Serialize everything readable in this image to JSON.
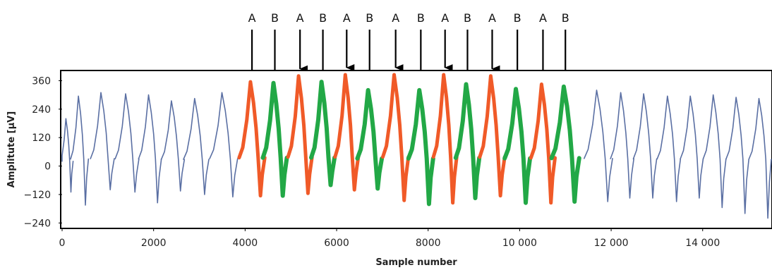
{
  "chart_data": {
    "type": "line",
    "xlabel": "Sample number",
    "ylabel": "Amplitute [µV]",
    "xlim": [
      0,
      15500
    ],
    "ylim": [
      -260,
      400
    ],
    "x_ticks": [
      0,
      2000,
      4000,
      6000,
      8000,
      10000,
      12000,
      14000
    ],
    "x_tick_labels": [
      "0",
      "2000",
      "4000",
      "6000",
      "8000",
      "10 000",
      "12 000",
      "14 000"
    ],
    "y_ticks": [
      360,
      240,
      120,
      0,
      -120,
      -240
    ],
    "y_tick_labels": [
      "360",
      "240",
      "120",
      "0",
      "−120",
      "−240"
    ],
    "grid": false,
    "colors": {
      "baseline": "#5a6fa3",
      "A": "#f05a28",
      "B": "#22a846"
    },
    "beats": [
      {
        "center": 100,
        "peak": 200,
        "trough": -110,
        "class": "baseline"
      },
      {
        "center": 380,
        "peak": 295,
        "trough": -165,
        "class": "baseline"
      },
      {
        "center": 880,
        "peak": 310,
        "trough": -100,
        "class": "baseline"
      },
      {
        "center": 1420,
        "peak": 305,
        "trough": -110,
        "class": "baseline"
      },
      {
        "center": 1920,
        "peak": 300,
        "trough": -155,
        "class": "baseline"
      },
      {
        "center": 2420,
        "peak": 275,
        "trough": -105,
        "class": "baseline"
      },
      {
        "center": 2930,
        "peak": 285,
        "trough": -120,
        "class": "baseline"
      },
      {
        "center": 3530,
        "peak": 310,
        "trough": -130,
        "class": "baseline"
      },
      {
        "center": 4150,
        "peak": 355,
        "trough": -125,
        "class": "A"
      },
      {
        "center": 4650,
        "peak": 350,
        "trough": -125,
        "class": "B"
      },
      {
        "center": 5200,
        "peak": 380,
        "trough": -115,
        "class": "A"
      },
      {
        "center": 5700,
        "peak": 355,
        "trough": -80,
        "class": "B"
      },
      {
        "center": 6220,
        "peak": 385,
        "trough": -100,
        "class": "A"
      },
      {
        "center": 6720,
        "peak": 320,
        "trough": -95,
        "class": "B"
      },
      {
        "center": 7290,
        "peak": 385,
        "trough": -145,
        "class": "A"
      },
      {
        "center": 7840,
        "peak": 320,
        "trough": -160,
        "class": "B"
      },
      {
        "center": 8370,
        "peak": 385,
        "trough": -155,
        "class": "A"
      },
      {
        "center": 8860,
        "peak": 345,
        "trough": -135,
        "class": "B"
      },
      {
        "center": 9400,
        "peak": 380,
        "trough": -125,
        "class": "A"
      },
      {
        "center": 9950,
        "peak": 325,
        "trough": -155,
        "class": "B"
      },
      {
        "center": 10510,
        "peak": 345,
        "trough": -155,
        "class": "A"
      },
      {
        "center": 11000,
        "peak": 335,
        "trough": -150,
        "class": "B"
      },
      {
        "center": 11720,
        "peak": 320,
        "trough": -150,
        "class": "baseline"
      },
      {
        "center": 12240,
        "peak": 310,
        "trough": -135,
        "class": "baseline"
      },
      {
        "center": 12740,
        "peak": 305,
        "trough": -135,
        "class": "baseline"
      },
      {
        "center": 13260,
        "peak": 295,
        "trough": -150,
        "class": "baseline"
      },
      {
        "center": 13760,
        "peak": 295,
        "trough": -135,
        "class": "baseline"
      },
      {
        "center": 14260,
        "peak": 300,
        "trough": -175,
        "class": "baseline"
      },
      {
        "center": 14760,
        "peak": 290,
        "trough": -200,
        "class": "baseline"
      },
      {
        "center": 15260,
        "peak": 285,
        "trough": -220,
        "class": "baseline"
      }
    ],
    "annotations": [
      {
        "label": "A",
        "x": 4150
      },
      {
        "label": "B",
        "x": 4650
      },
      {
        "label": "A",
        "x": 5200
      },
      {
        "label": "B",
        "x": 5700
      },
      {
        "label": "A",
        "x": 6220
      },
      {
        "label": "B",
        "x": 6720
      },
      {
        "label": "A",
        "x": 7290
      },
      {
        "label": "B",
        "x": 7840
      },
      {
        "label": "A",
        "x": 8370
      },
      {
        "label": "B",
        "x": 8860
      },
      {
        "label": "A",
        "x": 9400
      },
      {
        "label": "B",
        "x": 9950
      },
      {
        "label": "A",
        "x": 10510
      },
      {
        "label": "B",
        "x": 11000
      }
    ]
  }
}
